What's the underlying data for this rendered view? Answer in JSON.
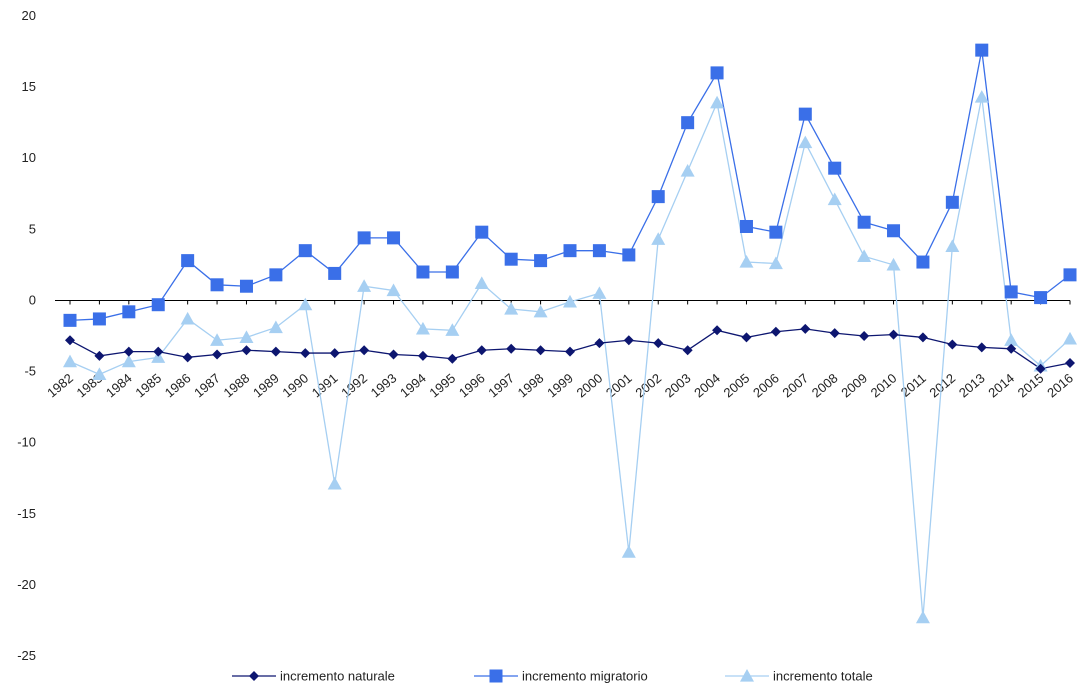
{
  "chart_data": {
    "type": "line",
    "title": "",
    "xlabel": "",
    "ylabel": "",
    "ylim": [
      -25,
      20
    ],
    "yticks": [
      20,
      15,
      10,
      5,
      0,
      -5,
      -10,
      -15,
      -20,
      -25
    ],
    "grid": false,
    "legend_position": "bottom",
    "categories": [
      "1982",
      "1983",
      "1984",
      "1985",
      "1986",
      "1987",
      "1988",
      "1989",
      "1990",
      "1991",
      "1992",
      "1993",
      "1994",
      "1995",
      "1996",
      "1997",
      "1998",
      "1999",
      "2000",
      "2001",
      "2002",
      "2003",
      "2004",
      "2005",
      "2006",
      "2007",
      "2008",
      "2009",
      "2010",
      "2011",
      "2012",
      "2013",
      "2014",
      "2015",
      "2016"
    ],
    "series": [
      {
        "name": "incremento naturale",
        "color": "#0d1670",
        "marker": "diamond",
        "values": [
          -2.8,
          -3.9,
          -3.6,
          -3.6,
          -4.0,
          -3.8,
          -3.5,
          -3.6,
          -3.7,
          -3.7,
          -3.5,
          -3.8,
          -3.9,
          -4.1,
          -3.5,
          -3.4,
          -3.5,
          -3.6,
          -3.0,
          -2.8,
          -3.0,
          -3.5,
          -2.1,
          -2.6,
          -2.2,
          -2.0,
          -2.3,
          -2.5,
          -2.4,
          -2.6,
          -3.1,
          -3.3,
          -3.4,
          -4.8,
          -4.4
        ]
      },
      {
        "name": "incremento migratorio",
        "color": "#3a6fe8",
        "marker": "square",
        "values": [
          -1.4,
          -1.3,
          -0.8,
          -0.3,
          2.8,
          1.1,
          1.0,
          1.8,
          3.5,
          1.9,
          4.4,
          4.4,
          2.0,
          2.0,
          4.8,
          2.9,
          2.8,
          3.5,
          3.5,
          3.2,
          7.3,
          12.5,
          16.0,
          5.2,
          4.8,
          13.1,
          9.3,
          5.5,
          4.9,
          2.7,
          6.9,
          17.6,
          0.6,
          0.2,
          1.8
        ]
      },
      {
        "name": "incremento totale",
        "color": "#a6cff2",
        "marker": "triangle",
        "values": [
          -4.3,
          -5.2,
          -4.3,
          -4.0,
          -1.3,
          -2.8,
          -2.6,
          -1.9,
          -0.3,
          -12.9,
          1.0,
          0.7,
          -2.0,
          -2.1,
          1.2,
          -0.6,
          -0.8,
          -0.1,
          0.5,
          -17.7,
          4.3,
          9.1,
          13.9,
          2.7,
          2.6,
          11.1,
          7.1,
          3.1,
          2.5,
          -22.3,
          3.8,
          14.3,
          -2.8,
          -4.6,
          -2.7
        ]
      }
    ]
  }
}
